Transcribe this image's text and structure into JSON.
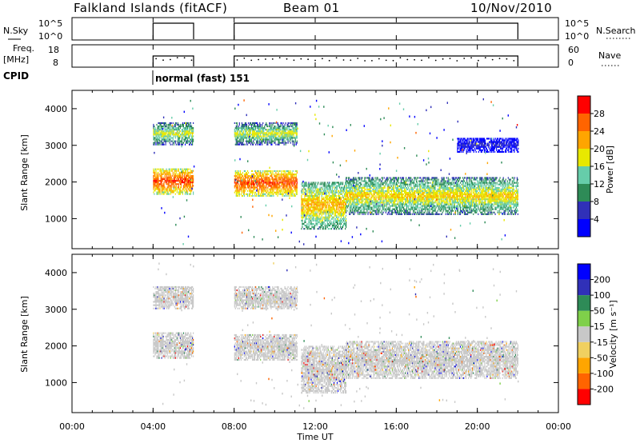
{
  "header": {
    "station": "Falkland Islands (fitACF)",
    "beam": "Beam 01",
    "date": "10/Nov/2010"
  },
  "left_labels": {
    "nsky": "N.Sky",
    "freq": "Freq.",
    "freq_unit": "[MHz]",
    "cpid": "CPID"
  },
  "right_labels": {
    "nsearch": "N.Search",
    "nave": "Nave"
  },
  "nsky_ticks": [
    "10^5",
    "10^0"
  ],
  "nsearch_ticks": [
    "10^5",
    "10^0"
  ],
  "freq_ticks": [
    "18",
    "8"
  ],
  "nave_ticks": [
    "60",
    "0"
  ],
  "cpid_text": "normal (fast) 151",
  "colors": {
    "power": [
      "#0000ff",
      "#3030b8",
      "#2e8b57",
      "#66cdaa",
      "#e8e800",
      "#ffa500",
      "#ff6400",
      "#ff0000"
    ],
    "velocity": [
      "#ff0000",
      "#ff6400",
      "#ffa500",
      "#f0d060",
      "#c8c8c8",
      "#7fd04a",
      "#2e8b57",
      "#3030b8",
      "#0000ff"
    ],
    "ground_scatter": "#c8c8c8"
  },
  "power_colorbar": {
    "label": "Power [dB]",
    "ticks": [
      "28",
      "24",
      "20",
      "16",
      "12",
      "8",
      "4"
    ]
  },
  "velocity_colorbar": {
    "label": "Velocity [m s⁻¹]",
    "ticks": [
      "200",
      "100",
      "50",
      "15",
      "-15",
      "-50",
      "-100",
      "-200"
    ]
  },
  "chart_data": [
    {
      "type": "heatmap",
      "panel": "power",
      "ylabel": "Slant Range [km]",
      "yticks": [
        "4000",
        "3000",
        "2000",
        "1000"
      ],
      "ylim": [
        180,
        4500
      ],
      "xlim_hours": [
        0,
        24
      ],
      "data_windows_ut": [
        [
          4.0,
          6.0
        ],
        [
          8.0,
          22.0
        ]
      ],
      "gaps_ut": [
        [
          11.1,
          11.3
        ]
      ],
      "bands": [
        {
          "t0": 4.0,
          "t1": 6.0,
          "r0": 1650,
          "r1": 2350,
          "level": 28
        },
        {
          "t0": 4.0,
          "t1": 6.0,
          "r0": 3000,
          "r1": 3600,
          "level": 18
        },
        {
          "t0": 8.0,
          "t1": 11.1,
          "r0": 1600,
          "r1": 2300,
          "level": 28
        },
        {
          "t0": 8.0,
          "t1": 11.1,
          "r0": 3000,
          "r1": 3600,
          "level": 18
        },
        {
          "t0": 11.3,
          "t1": 13.5,
          "r0": 700,
          "r1": 2000,
          "level": 22
        },
        {
          "t0": 13.5,
          "t1": 22.0,
          "r0": 1100,
          "r1": 2100,
          "level": 20
        },
        {
          "t0": 19.0,
          "t1": 22.0,
          "r0": 2800,
          "r1": 3200,
          "level": 6
        }
      ]
    },
    {
      "type": "heatmap",
      "panel": "velocity",
      "ylabel": "Slant Range [km]",
      "yticks": [
        "4000",
        "3000",
        "2000",
        "1000"
      ],
      "ylim": [
        180,
        4500
      ],
      "xlim_hours": [
        0,
        24
      ],
      "xticks": [
        "00:00",
        "04:00",
        "08:00",
        "12:00",
        "16:00",
        "20:00",
        "00:00"
      ],
      "xlabel": "Time UT",
      "bands": [
        {
          "t0": 4.0,
          "t1": 6.0,
          "r0": 1650,
          "r1": 2350,
          "level": 0
        },
        {
          "t0": 4.0,
          "t1": 6.0,
          "r0": 3000,
          "r1": 3600,
          "level": 0
        },
        {
          "t0": 8.0,
          "t1": 11.1,
          "r0": 1600,
          "r1": 2300,
          "level": 0
        },
        {
          "t0": 8.0,
          "t1": 11.1,
          "r0": 3000,
          "r1": 3600,
          "level": 0
        },
        {
          "t0": 11.3,
          "t1": 13.5,
          "r0": 700,
          "r1": 2000,
          "level": 0
        },
        {
          "t0": 13.5,
          "t1": 22.0,
          "r0": 1100,
          "r1": 2100,
          "level": 0
        }
      ]
    },
    {
      "type": "line",
      "panel": "nsky",
      "x_windows_ut": [
        [
          4.0,
          6.0
        ],
        [
          8.0,
          22.0
        ]
      ],
      "value": "10^5"
    },
    {
      "type": "line",
      "panel": "freq",
      "x_windows_ut": [
        [
          4.0,
          6.0
        ],
        [
          8.0,
          22.0
        ]
      ],
      "value_mhz": 11
    }
  ]
}
